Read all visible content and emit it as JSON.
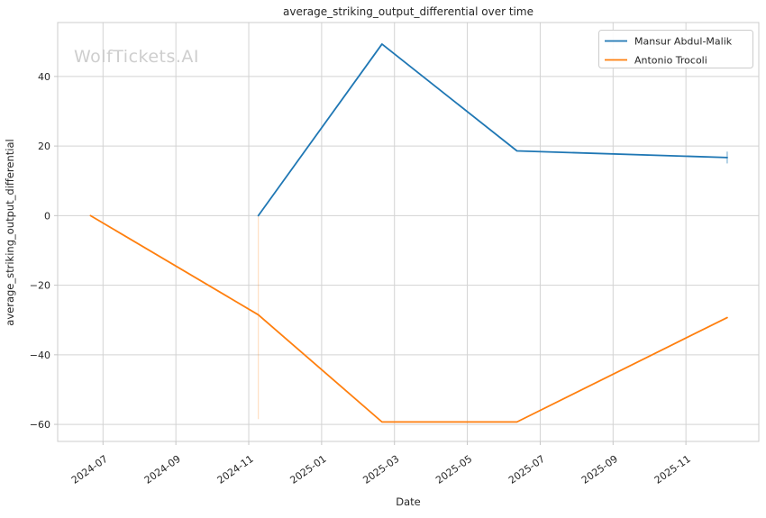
{
  "watermark": "WolfTickets.AI",
  "chart_data": {
    "type": "line",
    "title": "average_striking_output_differential over time",
    "xlabel": "Date",
    "ylabel": "average_striking_output_differential",
    "grid": true,
    "legend_position": "upper right",
    "x_ticks": [
      "2024-07",
      "2024-09",
      "2024-11",
      "2025-01",
      "2025-03",
      "2025-05",
      "2025-07",
      "2025-09",
      "2025-11"
    ],
    "y_ticks": [
      40,
      20,
      0,
      -20,
      -40,
      -60
    ],
    "x_range": [
      "2024-05-24",
      "2026-01-01"
    ],
    "y_range": [
      -64.9,
      55.5
    ],
    "series": [
      {
        "name": "Mansur Abdul-Malik",
        "color": "#1f77b4",
        "points": [
          {
            "date": "2024-11-09",
            "value": 0
          },
          {
            "date": "2025-02-21",
            "value": 49.3
          },
          {
            "date": "2025-06-12",
            "value": 18.6
          },
          {
            "date": "2025-12-05",
            "value": 16.7
          }
        ]
      },
      {
        "name": "Antonio Trocoli",
        "color": "#ff7f0e",
        "points": [
          {
            "date": "2024-06-21",
            "value": 0
          },
          {
            "date": "2024-11-09",
            "value": -28.5
          },
          {
            "date": "2025-02-21",
            "value": -59.3
          },
          {
            "date": "2025-06-12",
            "value": -59.3
          },
          {
            "date": "2025-12-05",
            "value": -29.3
          }
        ]
      }
    ],
    "event_markers": [
      {
        "date": "2024-11-09",
        "from": 0,
        "to": -58.5,
        "color": "#ff7f0e",
        "opacity": 0.25,
        "width": 1.2
      },
      {
        "date": "2025-12-05",
        "from": 18.4,
        "to": 15.0,
        "color": "#1f77b4",
        "opacity": 0.35,
        "width": 2
      }
    ]
  }
}
